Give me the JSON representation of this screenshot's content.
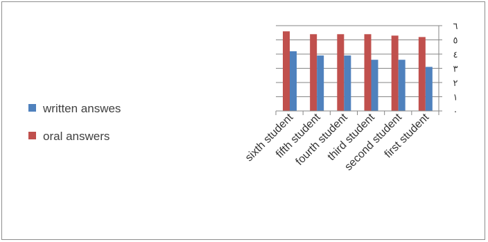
{
  "chart_data": {
    "type": "bar",
    "title": "",
    "xlabel": "",
    "ylabel": "",
    "categories": [
      "sixth student",
      "fifth student",
      "fourth student",
      "third student",
      "second student",
      "first student"
    ],
    "series": [
      {
        "name": "oral answers",
        "color": "#c0504d",
        "values": [
          5.6,
          5.4,
          5.4,
          5.4,
          5.3,
          5.2
        ]
      },
      {
        "name": "written answes",
        "color": "#4f81bd",
        "values": [
          4.2,
          3.9,
          3.9,
          3.6,
          3.6,
          3.1
        ]
      }
    ],
    "ylim": [
      0,
      6
    ],
    "y_ticks": [
      "٠",
      "١",
      "٢",
      "٣",
      "٤",
      "٥",
      "٦"
    ],
    "y_axis_side": "right",
    "grid": true,
    "legend": {
      "position": "left",
      "entries": [
        {
          "label": "written answes",
          "color": "#4f81bd"
        },
        {
          "label": "oral answers",
          "color": "#c0504d"
        }
      ]
    }
  }
}
